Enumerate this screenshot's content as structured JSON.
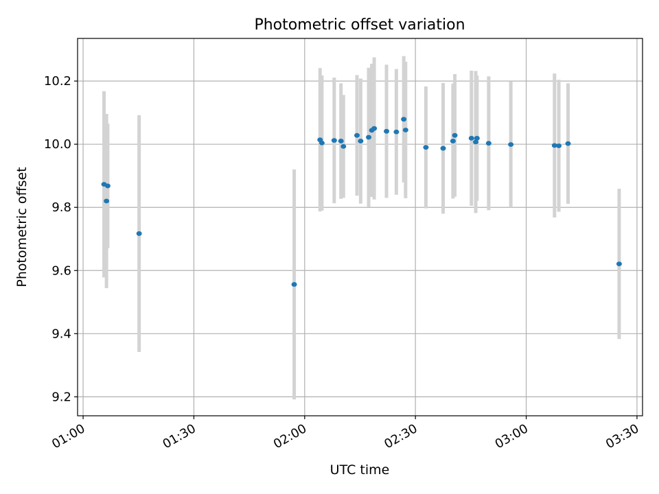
{
  "chart_data": {
    "type": "scatter",
    "title": "Photometric offset variation",
    "xlabel": "UTC time",
    "ylabel": "Photometric offset",
    "x_is_time": true,
    "xlim": [
      "00:58:30",
      "03:31:30"
    ],
    "ylim": [
      9.14,
      10.335
    ],
    "xticks": [
      "01:00",
      "01:30",
      "02:00",
      "02:30",
      "03:00",
      "03:30"
    ],
    "yticks": [
      9.2,
      9.4,
      9.6,
      9.8,
      10.0,
      10.2
    ],
    "ytick_labels": [
      "9.2",
      "9.4",
      "9.6",
      "9.8",
      "10.0",
      "10.2"
    ],
    "grid": true,
    "colors": {
      "point": "#1f77b4",
      "errorbar": "#d3d3d3",
      "grid": "#b0b0b0"
    },
    "series": [
      {
        "points": [
          {
            "x": "01:05:40",
            "y": 9.873,
            "yerr": 0.295
          },
          {
            "x": "01:06:20",
            "y": 9.82,
            "yerr": 0.276
          },
          {
            "x": "01:06:40",
            "y": 9.868,
            "yerr": 0.197
          },
          {
            "x": "01:15:10",
            "y": 9.717,
            "yerr": 0.375
          },
          {
            "x": "01:57:10",
            "y": 9.556,
            "yerr": 0.364
          },
          {
            "x": "02:04:10",
            "y": 10.014,
            "yerr": 0.227
          },
          {
            "x": "02:04:40",
            "y": 10.004,
            "yerr": 0.214
          },
          {
            "x": "02:08:00",
            "y": 10.012,
            "yerr": 0.199
          },
          {
            "x": "02:09:50",
            "y": 10.01,
            "yerr": 0.183
          },
          {
            "x": "02:10:30",
            "y": 9.993,
            "yerr": 0.163
          },
          {
            "x": "02:14:10",
            "y": 10.028,
            "yerr": 0.191
          },
          {
            "x": "02:15:10",
            "y": 10.01,
            "yerr": 0.198
          },
          {
            "x": "02:17:20",
            "y": 10.022,
            "yerr": 0.22
          },
          {
            "x": "02:18:10",
            "y": 10.044,
            "yerr": 0.211
          },
          {
            "x": "02:18:50",
            "y": 10.05,
            "yerr": 0.225
          },
          {
            "x": "02:22:10",
            "y": 10.041,
            "yerr": 0.211
          },
          {
            "x": "02:24:50",
            "y": 10.039,
            "yerr": 0.199
          },
          {
            "x": "02:26:50",
            "y": 10.079,
            "yerr": 0.2
          },
          {
            "x": "02:27:20",
            "y": 10.045,
            "yerr": 0.216
          },
          {
            "x": "02:32:50",
            "y": 9.99,
            "yerr": 0.193
          },
          {
            "x": "02:37:30",
            "y": 9.987,
            "yerr": 0.207
          },
          {
            "x": "02:40:10",
            "y": 10.01,
            "yerr": 0.182
          },
          {
            "x": "02:40:40",
            "y": 10.028,
            "yerr": 0.194
          },
          {
            "x": "02:45:10",
            "y": 10.019,
            "yerr": 0.214
          },
          {
            "x": "02:46:20",
            "y": 10.007,
            "yerr": 0.225
          },
          {
            "x": "02:46:40",
            "y": 10.019,
            "yerr": 0.198
          },
          {
            "x": "02:49:50",
            "y": 10.003,
            "yerr": 0.212
          },
          {
            "x": "02:55:50",
            "y": 9.999,
            "yerr": 0.199
          },
          {
            "x": "03:07:40",
            "y": 9.996,
            "yerr": 0.228
          },
          {
            "x": "03:08:50",
            "y": 9.995,
            "yerr": 0.209
          },
          {
            "x": "03:11:20",
            "y": 10.002,
            "yerr": 0.191
          },
          {
            "x": "03:25:10",
            "y": 9.621,
            "yerr": 0.238
          }
        ]
      }
    ]
  }
}
